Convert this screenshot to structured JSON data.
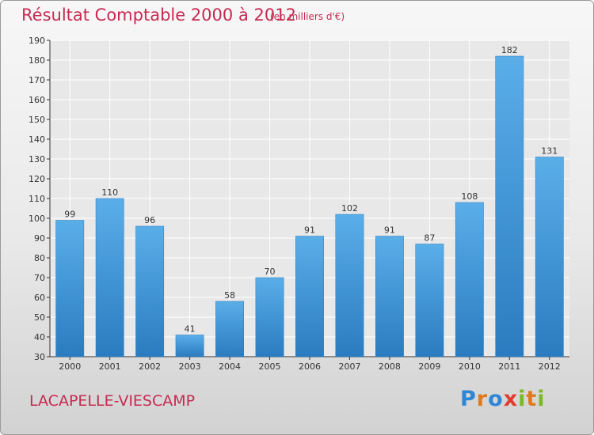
{
  "title": "Résultat Comptable 2000 à 2012",
  "subtitle": "(en milliers d'€)",
  "commune": "LACAPELLE-VIESCAMP",
  "logo": {
    "letters": [
      "P",
      "r",
      "o",
      "x",
      "i",
      "t",
      "i"
    ],
    "colors": [
      "#2e86d6",
      "#e07a1f",
      "#2e86d6",
      "#e03c2e",
      "#7ab828",
      "#e07a1f",
      "#7ab828"
    ]
  },
  "colors": {
    "bar_top": "#5aaee8",
    "bar_bottom": "#2a7cc0",
    "text_accent": "#c62a52"
  },
  "chart_data": {
    "type": "bar",
    "categories": [
      "2000",
      "2001",
      "2002",
      "2003",
      "2004",
      "2005",
      "2006",
      "2007",
      "2008",
      "2009",
      "2010",
      "2011",
      "2012"
    ],
    "values": [
      99,
      110,
      96,
      41,
      58,
      70,
      91,
      102,
      91,
      87,
      108,
      182,
      131
    ],
    "data_labels": [
      "99",
      "110",
      "96",
      "41",
      "58",
      "70",
      "91",
      "102",
      "91",
      "87",
      "108",
      "182",
      "131"
    ],
    "yticks": [
      "30",
      "40",
      "50",
      "60",
      "70",
      "80",
      "90",
      "100",
      "110",
      "120",
      "130",
      "140",
      "150",
      "160",
      "170",
      "180",
      "190"
    ],
    "ylim": [
      30,
      190
    ],
    "grid": true
  }
}
